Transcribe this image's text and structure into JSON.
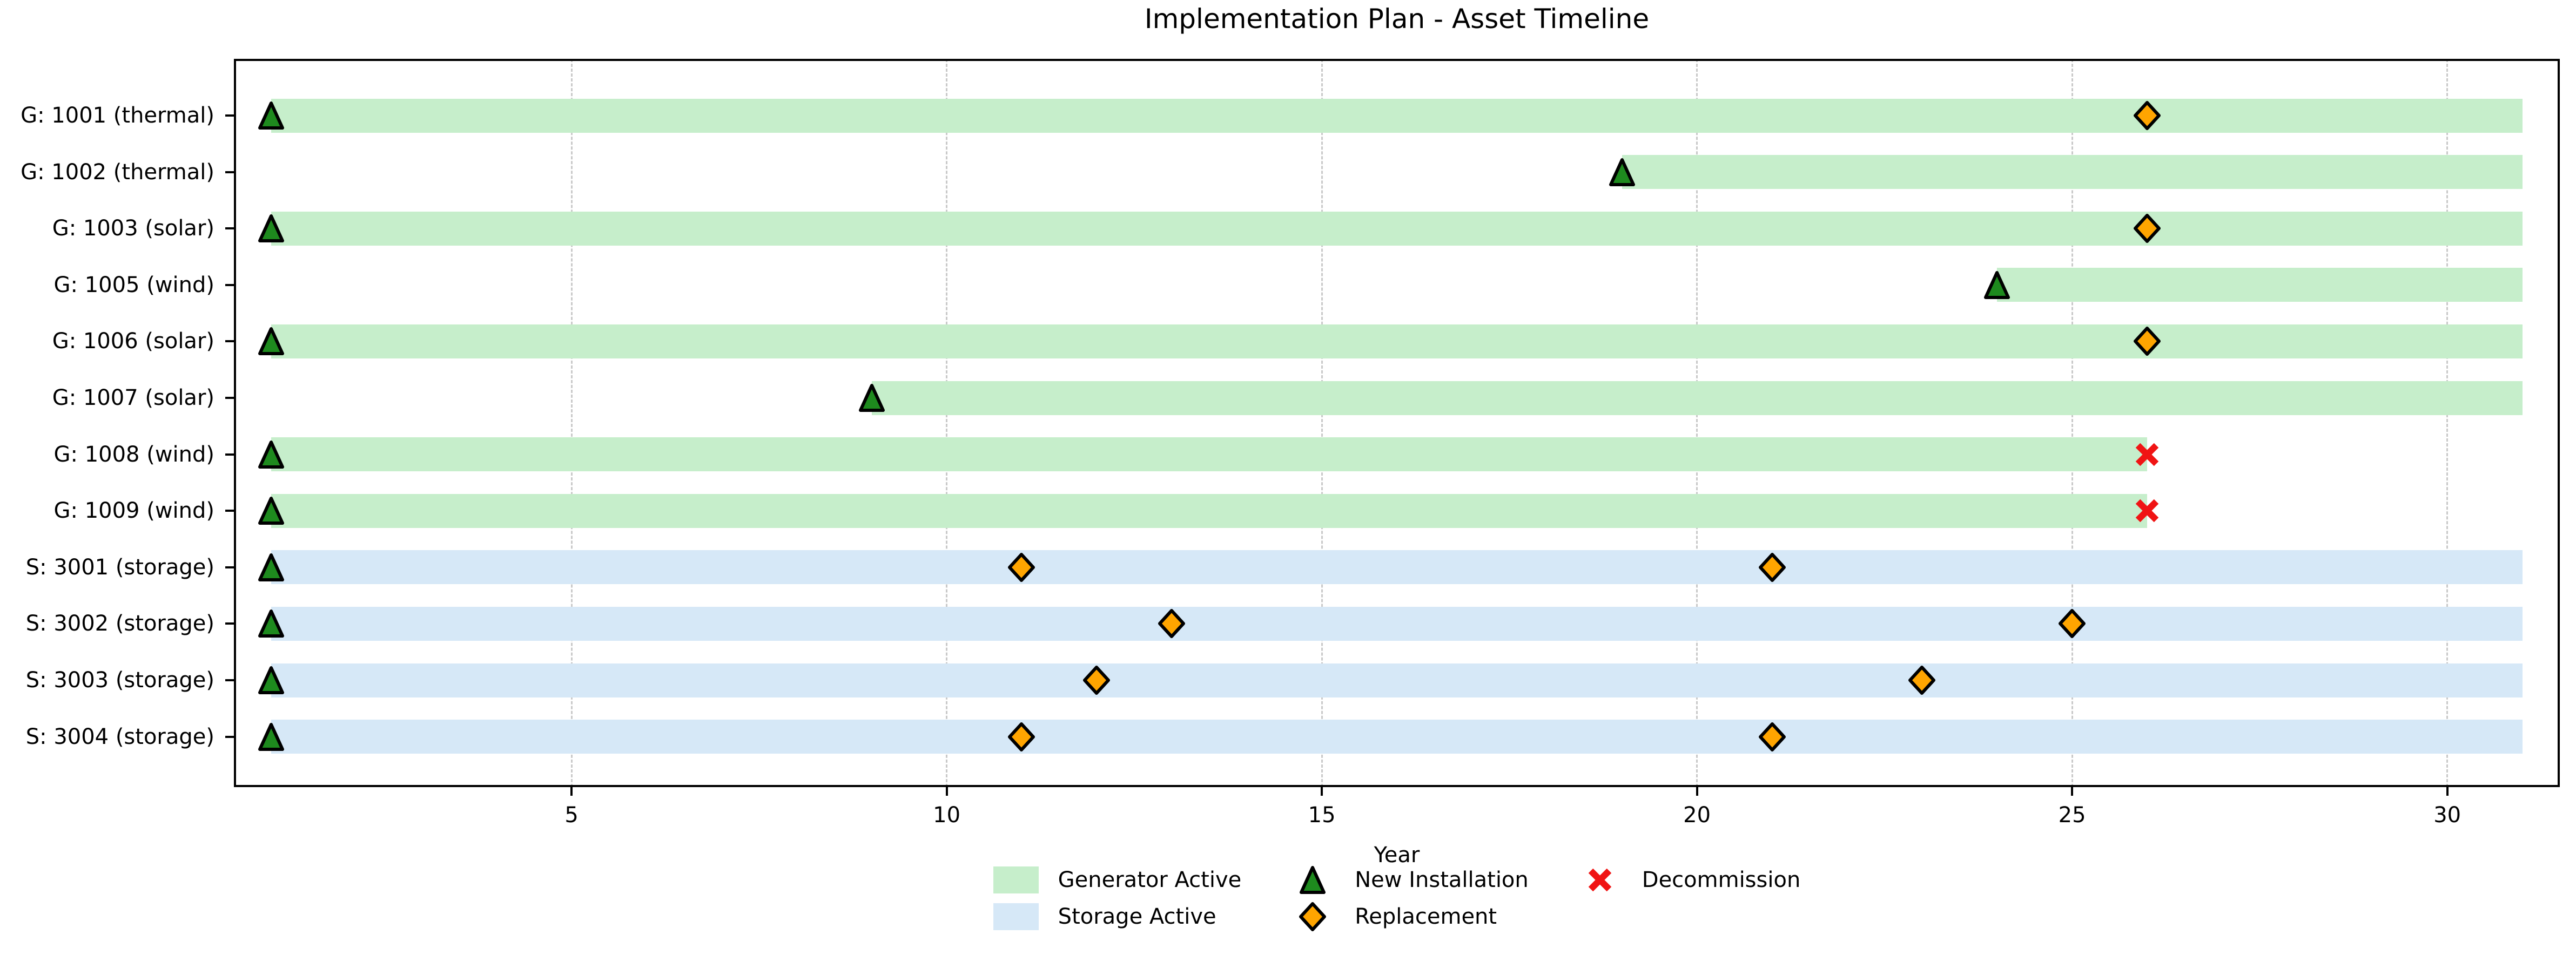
{
  "chart_data": {
    "type": "bar",
    "subtype": "gantt_timeline",
    "title": "Implementation Plan - Asset Timeline",
    "xlabel": "Year",
    "xlim": [
      0.5,
      31.5
    ],
    "xticks": [
      5,
      10,
      15,
      20,
      25,
      30
    ],
    "grid": {
      "axis": "x",
      "style": "dashed",
      "color": "#c9c9c9"
    },
    "legend_position": "below-axis",
    "colors": {
      "generator_bar": "#c6eecb",
      "storage_bar": "#d6e8f7",
      "install_marker": "#1e8a1e",
      "replacement_marker": "#ffa500",
      "decommission_marker": "#f01414",
      "marker_edge": "#000000",
      "axis": "#000000"
    },
    "legend": [
      {
        "swatch": "generator-patch",
        "label": "Generator Active"
      },
      {
        "swatch": "storage-patch",
        "label": "Storage Active"
      },
      {
        "swatch": "install-triangle",
        "label": "New Installation"
      },
      {
        "swatch": "replacement-diamond",
        "label": "Replacement"
      },
      {
        "swatch": "decommission-x",
        "label": "Decommission"
      }
    ],
    "rows": [
      {
        "label": "G: 1001 (thermal)",
        "kind": "generator",
        "active": [
          [
            1,
            31
          ]
        ],
        "events": [
          {
            "type": "install",
            "year": 1
          },
          {
            "type": "replacement",
            "year": 26
          }
        ]
      },
      {
        "label": "G: 1002 (thermal)",
        "kind": "generator",
        "active": [
          [
            19,
            31
          ]
        ],
        "events": [
          {
            "type": "install",
            "year": 19
          }
        ]
      },
      {
        "label": "G: 1003 (solar)",
        "kind": "generator",
        "active": [
          [
            1,
            31
          ]
        ],
        "events": [
          {
            "type": "install",
            "year": 1
          },
          {
            "type": "replacement",
            "year": 26
          }
        ]
      },
      {
        "label": "G: 1005 (wind)",
        "kind": "generator",
        "active": [
          [
            24,
            31
          ]
        ],
        "events": [
          {
            "type": "install",
            "year": 24
          }
        ]
      },
      {
        "label": "G: 1006 (solar)",
        "kind": "generator",
        "active": [
          [
            1,
            31
          ]
        ],
        "events": [
          {
            "type": "install",
            "year": 1
          },
          {
            "type": "replacement",
            "year": 26
          }
        ]
      },
      {
        "label": "G: 1007 (solar)",
        "kind": "generator",
        "active": [
          [
            9,
            31
          ]
        ],
        "events": [
          {
            "type": "install",
            "year": 9
          }
        ]
      },
      {
        "label": "G: 1008 (wind)",
        "kind": "generator",
        "active": [
          [
            1,
            26
          ]
        ],
        "events": [
          {
            "type": "install",
            "year": 1
          },
          {
            "type": "decommission",
            "year": 26
          }
        ]
      },
      {
        "label": "G: 1009 (wind)",
        "kind": "generator",
        "active": [
          [
            1,
            26
          ]
        ],
        "events": [
          {
            "type": "install",
            "year": 1
          },
          {
            "type": "decommission",
            "year": 26
          }
        ]
      },
      {
        "label": "S: 3001 (storage)",
        "kind": "storage",
        "active": [
          [
            1,
            31
          ]
        ],
        "events": [
          {
            "type": "install",
            "year": 1
          },
          {
            "type": "replacement",
            "year": 11
          },
          {
            "type": "replacement",
            "year": 21
          }
        ]
      },
      {
        "label": "S: 3002 (storage)",
        "kind": "storage",
        "active": [
          [
            1,
            31
          ]
        ],
        "events": [
          {
            "type": "install",
            "year": 1
          },
          {
            "type": "replacement",
            "year": 13
          },
          {
            "type": "replacement",
            "year": 25
          }
        ]
      },
      {
        "label": "S: 3003 (storage)",
        "kind": "storage",
        "active": [
          [
            1,
            31
          ]
        ],
        "events": [
          {
            "type": "install",
            "year": 1
          },
          {
            "type": "replacement",
            "year": 12
          },
          {
            "type": "replacement",
            "year": 23
          }
        ]
      },
      {
        "label": "S: 3004 (storage)",
        "kind": "storage",
        "active": [
          [
            1,
            31
          ]
        ],
        "events": [
          {
            "type": "install",
            "year": 1
          },
          {
            "type": "replacement",
            "year": 11
          },
          {
            "type": "replacement",
            "year": 21
          }
        ]
      }
    ]
  }
}
